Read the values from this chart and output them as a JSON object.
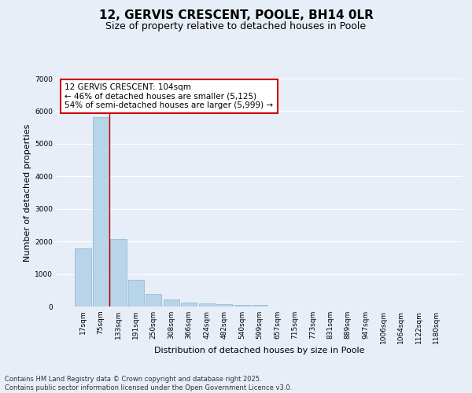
{
  "title": "12, GERVIS CRESCENT, POOLE, BH14 0LR",
  "subtitle": "Size of property relative to detached houses in Poole",
  "xlabel": "Distribution of detached houses by size in Poole",
  "ylabel": "Number of detached properties",
  "categories": [
    "17sqm",
    "75sqm",
    "133sqm",
    "191sqm",
    "250sqm",
    "308sqm",
    "366sqm",
    "424sqm",
    "482sqm",
    "540sqm",
    "599sqm",
    "657sqm",
    "715sqm",
    "773sqm",
    "831sqm",
    "889sqm",
    "947sqm",
    "1006sqm",
    "1064sqm",
    "1122sqm",
    "1180sqm"
  ],
  "values": [
    1780,
    5820,
    2080,
    810,
    380,
    220,
    130,
    100,
    75,
    55,
    50,
    0,
    0,
    0,
    0,
    0,
    0,
    0,
    0,
    0,
    0
  ],
  "bar_color": "#b8d4e8",
  "bar_edge_color": "#8ab4cc",
  "background_color": "#e8eef8",
  "plot_bg_color": "#e8eef8",
  "grid_color": "#ffffff",
  "vline_color": "#cc0000",
  "annotation_title": "12 GERVIS CRESCENT: 104sqm",
  "annotation_line1": "← 46% of detached houses are smaller (5,125)",
  "annotation_line2": "54% of semi-detached houses are larger (5,999) →",
  "annotation_box_color": "#cc0000",
  "ylim": [
    0,
    7000
  ],
  "yticks": [
    0,
    1000,
    2000,
    3000,
    4000,
    5000,
    6000,
    7000
  ],
  "footer_line1": "Contains HM Land Registry data © Crown copyright and database right 2025.",
  "footer_line2": "Contains public sector information licensed under the Open Government Licence v3.0.",
  "title_fontsize": 11,
  "subtitle_fontsize": 9,
  "axis_label_fontsize": 8,
  "tick_fontsize": 6.5,
  "annotation_fontsize": 7.5,
  "footer_fontsize": 6
}
